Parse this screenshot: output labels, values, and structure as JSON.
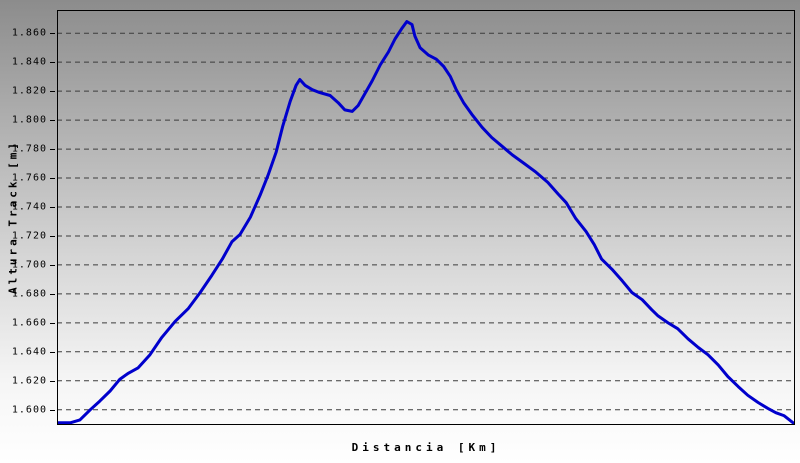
{
  "chart_data": {
    "type": "line",
    "title": "",
    "xlabel": "Distancia [Km]",
    "ylabel": "Altura Track [m]",
    "legend": "none",
    "grid": "dashed-horizontal",
    "x_tick_labels": [],
    "y_ticks": [
      1600,
      1620,
      1640,
      1660,
      1680,
      1700,
      1720,
      1740,
      1760,
      1780,
      1800,
      1820,
      1840,
      1860
    ],
    "y_tick_labels": [
      "1.600",
      "1.620",
      "1.640",
      "1.660",
      "1.680",
      "1.700",
      "1.720",
      "1.740",
      "1.760",
      "1.780",
      "1.800",
      "1.820",
      "1.840",
      "1.860"
    ],
    "y_plot_range": [
      1589.5,
      1876
    ],
    "line_color": "#0000cc",
    "series": [
      {
        "name": "Altura Track",
        "x_unit": "fraction-of-plot-width",
        "y_unit": "m",
        "points": [
          [
            0.0,
            1591
          ],
          [
            0.018,
            1591
          ],
          [
            0.031,
            1593
          ],
          [
            0.045,
            1600
          ],
          [
            0.058,
            1606
          ],
          [
            0.072,
            1613
          ],
          [
            0.085,
            1621
          ],
          [
            0.096,
            1625
          ],
          [
            0.11,
            1629
          ],
          [
            0.126,
            1638
          ],
          [
            0.142,
            1650
          ],
          [
            0.16,
            1661
          ],
          [
            0.178,
            1670
          ],
          [
            0.194,
            1681
          ],
          [
            0.21,
            1693
          ],
          [
            0.224,
            1704
          ],
          [
            0.237,
            1716
          ],
          [
            0.248,
            1721
          ],
          [
            0.262,
            1733
          ],
          [
            0.275,
            1748
          ],
          [
            0.286,
            1762
          ],
          [
            0.297,
            1778
          ],
          [
            0.306,
            1796
          ],
          [
            0.316,
            1813
          ],
          [
            0.324,
            1824
          ],
          [
            0.329,
            1828
          ],
          [
            0.336,
            1824
          ],
          [
            0.346,
            1821
          ],
          [
            0.356,
            1819
          ],
          [
            0.37,
            1817
          ],
          [
            0.381,
            1812
          ],
          [
            0.39,
            1807
          ],
          [
            0.4,
            1806
          ],
          [
            0.408,
            1810
          ],
          [
            0.417,
            1818
          ],
          [
            0.427,
            1827
          ],
          [
            0.438,
            1838
          ],
          [
            0.449,
            1847
          ],
          [
            0.458,
            1856
          ],
          [
            0.467,
            1863
          ],
          [
            0.474,
            1868
          ],
          [
            0.481,
            1866
          ],
          [
            0.485,
            1858
          ],
          [
            0.492,
            1850
          ],
          [
            0.503,
            1845
          ],
          [
            0.514,
            1842
          ],
          [
            0.524,
            1837
          ],
          [
            0.533,
            1830
          ],
          [
            0.541,
            1821
          ],
          [
            0.551,
            1812
          ],
          [
            0.562,
            1804
          ],
          [
            0.576,
            1795
          ],
          [
            0.589,
            1788
          ],
          [
            0.603,
            1782
          ],
          [
            0.617,
            1776
          ],
          [
            0.633,
            1770
          ],
          [
            0.649,
            1764
          ],
          [
            0.665,
            1757
          ],
          [
            0.679,
            1749
          ],
          [
            0.69,
            1743
          ],
          [
            0.703,
            1732
          ],
          [
            0.717,
            1723
          ],
          [
            0.728,
            1714
          ],
          [
            0.738,
            1704
          ],
          [
            0.752,
            1697
          ],
          [
            0.766,
            1689
          ],
          [
            0.779,
            1681
          ],
          [
            0.793,
            1676
          ],
          [
            0.806,
            1669
          ],
          [
            0.814,
            1665
          ],
          [
            0.828,
            1660
          ],
          [
            0.841,
            1656
          ],
          [
            0.855,
            1649
          ],
          [
            0.869,
            1643
          ],
          [
            0.882,
            1638
          ],
          [
            0.896,
            1631
          ],
          [
            0.909,
            1623
          ],
          [
            0.923,
            1616
          ],
          [
            0.936,
            1610
          ],
          [
            0.95,
            1605
          ],
          [
            0.963,
            1601
          ],
          [
            0.974,
            1598
          ],
          [
            0.985,
            1596
          ],
          [
            1.0,
            1590
          ]
        ]
      }
    ]
  }
}
